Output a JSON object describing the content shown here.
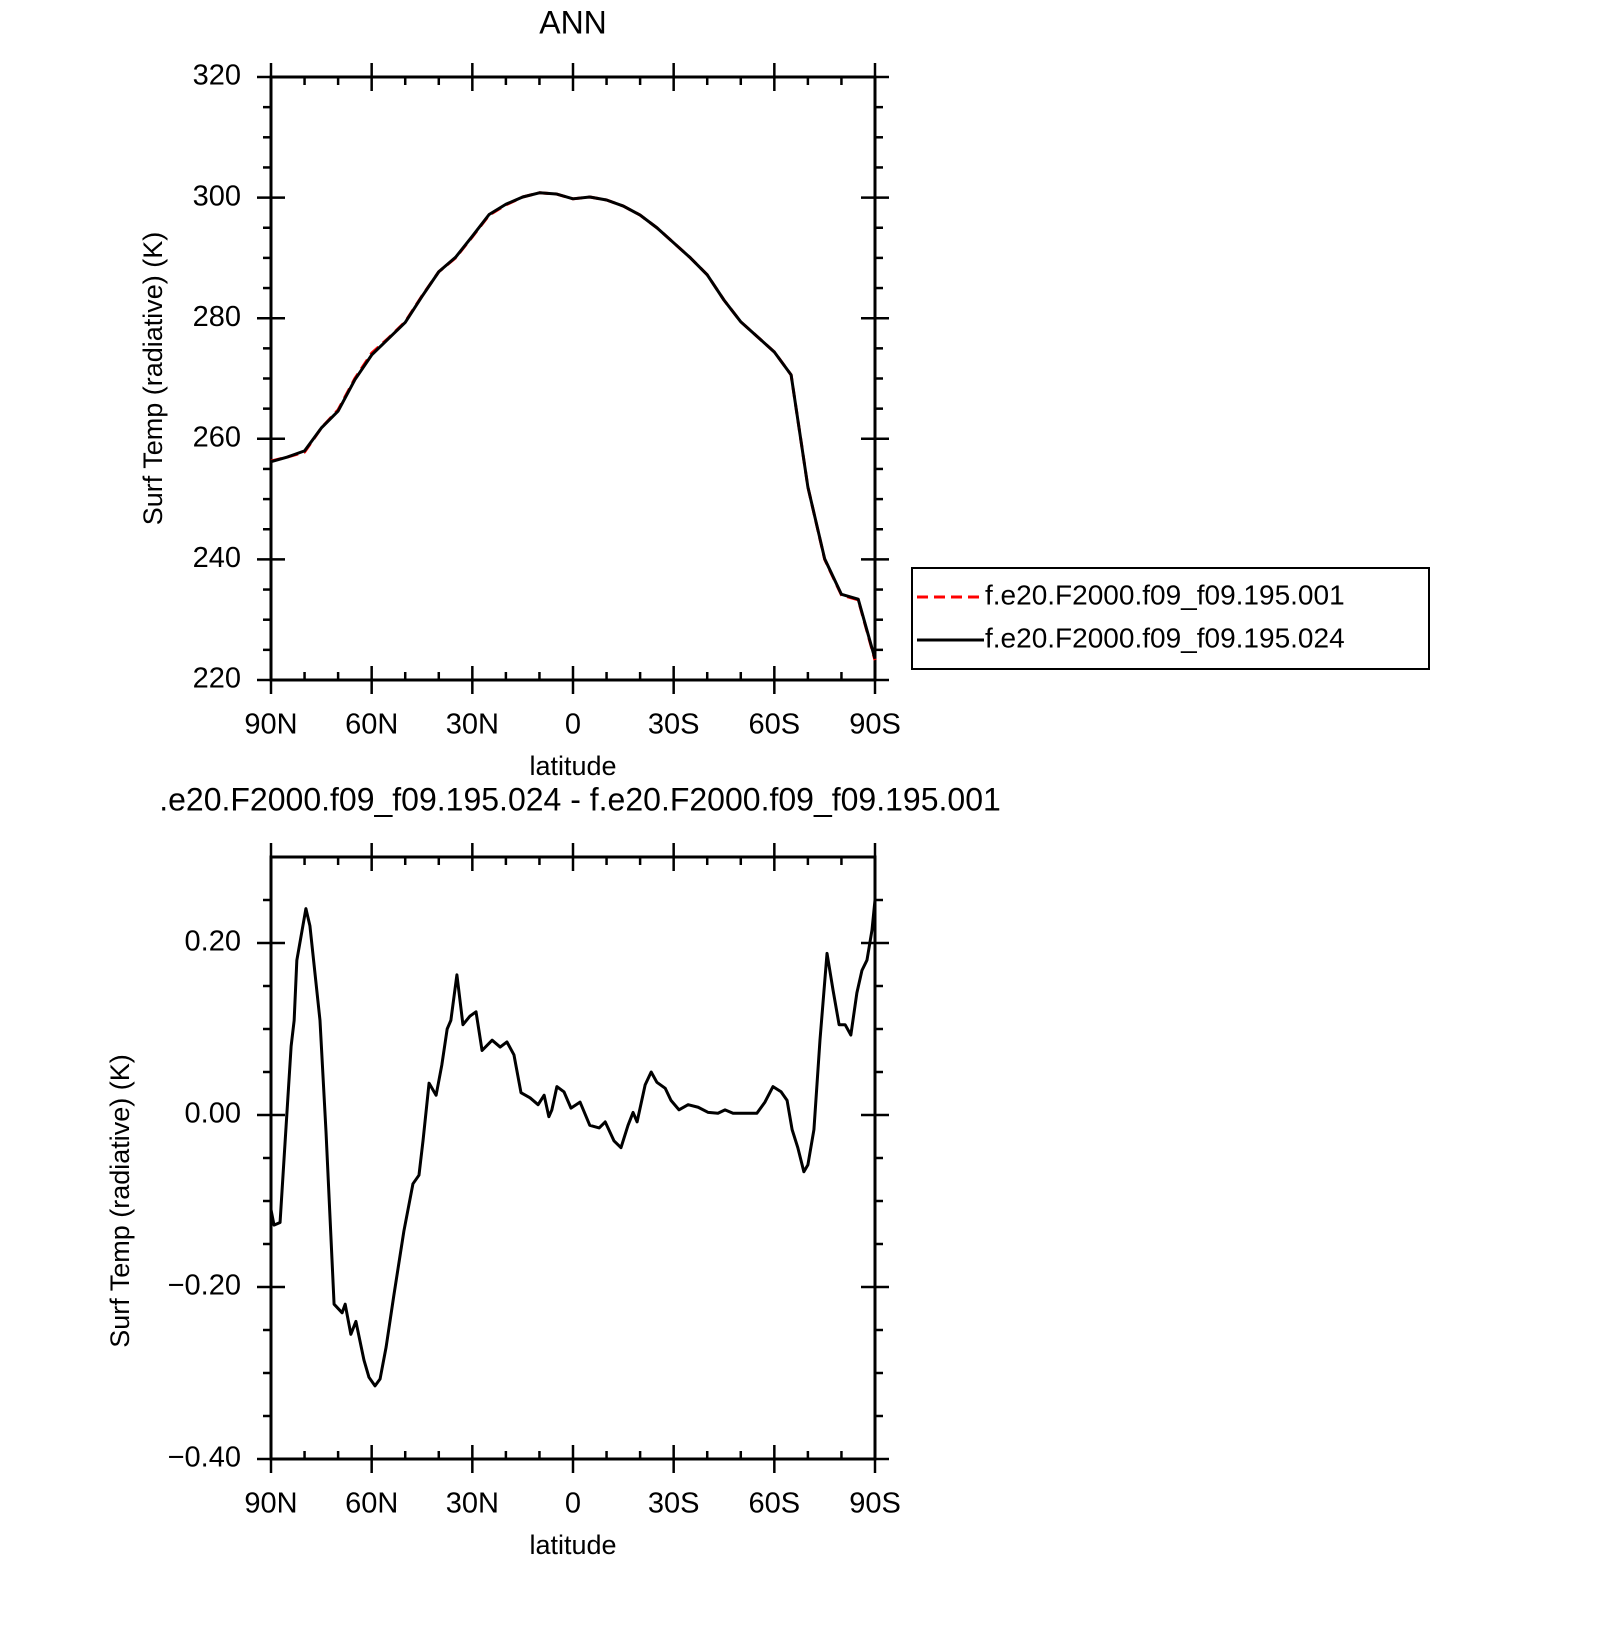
{
  "chart_data": [
    {
      "type": "line",
      "title": "ANN",
      "x_label": "latitude",
      "y_label": "Surf Temp (radiative) (K)",
      "x": [
        90,
        85,
        80,
        75,
        70,
        65,
        60,
        55,
        50,
        45,
        40,
        35,
        30,
        25,
        20,
        15,
        10,
        5,
        0,
        -5,
        -10,
        -15,
        -20,
        -25,
        -30,
        -35,
        -40,
        -45,
        -50,
        -55,
        -60,
        -65,
        -70,
        -75,
        -80,
        -85,
        -90
      ],
      "series": [
        {
          "name": "f.e20.F2000.f09_f09.195.001",
          "color": "#ff0000",
          "dashed": true,
          "values": [
            256.3,
            257.0,
            257.8,
            261.8,
            264.8,
            270.0,
            274.2,
            276.7,
            279.4,
            283.7,
            287.7,
            290.0,
            293.5,
            297.1,
            298.8,
            300.1,
            300.8,
            300.6,
            299.8,
            300.1,
            299.6,
            298.6,
            297.1,
            295.0,
            292.5,
            290.0,
            287.2,
            283.0,
            279.4,
            276.9,
            274.4,
            270.6,
            252.0,
            240.0,
            234.1,
            233.3,
            223.3
          ]
        },
        {
          "name": "f.e20.F2000.f09_f09.195.024",
          "color": "#000000",
          "dashed": false,
          "values": [
            256.2,
            257.0,
            258.0,
            261.8,
            264.6,
            269.8,
            273.9,
            276.6,
            279.3,
            283.6,
            287.7,
            290.1,
            293.6,
            297.2,
            298.9,
            300.1,
            300.8,
            300.6,
            299.8,
            300.1,
            299.6,
            298.6,
            297.1,
            295.0,
            292.5,
            290.0,
            287.2,
            283.0,
            279.4,
            276.9,
            274.4,
            270.6,
            252.0,
            240.1,
            234.2,
            233.4,
            223.5
          ]
        }
      ],
      "xlim": [
        90,
        -90
      ],
      "xticks": [
        {
          "value": 90,
          "label": "90N"
        },
        {
          "value": 60,
          "label": "60N"
        },
        {
          "value": 30,
          "label": "30N"
        },
        0,
        {
          "value": -30,
          "label": "30S"
        },
        {
          "value": -60,
          "label": "60S"
        },
        {
          "value": -90,
          "label": "90S"
        }
      ],
      "xminorticks": [
        80,
        70,
        50,
        40,
        20,
        10,
        -10,
        -20,
        -40,
        -50,
        -70,
        -80
      ],
      "ylim": [
        220,
        320
      ],
      "yticks": [
        220,
        240,
        260,
        280,
        300,
        320
      ],
      "yminorticks": [
        225,
        230,
        235,
        245,
        250,
        255,
        265,
        270,
        275,
        285,
        290,
        295,
        305,
        310,
        315
      ],
      "legend": "right"
    },
    {
      "type": "line",
      "title": ".e20.F2000.f09_f09.195.024 - f.e20.F2000.f09_f09.195.001",
      "x_label": "latitude",
      "y_label": "Surf Temp (radiative) (K)",
      "x": [
        90,
        89.1,
        87.3,
        86.1,
        84,
        83.1,
        82.3,
        79.6,
        78.4,
        75.4,
        73.6,
        71.2,
        68.8,
        67.9,
        66.2,
        64.7,
        62.3,
        60.8,
        59,
        57.5,
        55.7,
        53.4,
        50.4,
        47.7,
        45.9,
        44.7,
        42.9,
        40.8,
        39.1,
        37.5,
        36.4,
        34.6,
        32.8,
        30.7,
        28.9,
        27.1,
        24.1,
        21.7,
        19.7,
        17.6,
        15.5,
        12.8,
        10.4,
        8.6,
        7.2,
        6.3,
        4.8,
        2.7,
        0.6,
        -2.1,
        -5,
        -7.8,
        -9.6,
        -12.2,
        -14.3,
        -16.4,
        -17.9,
        -19.1,
        -21.5,
        -23.3,
        -25,
        -27.5,
        -29.2,
        -31.6,
        -34.3,
        -37.3,
        -40.3,
        -43.2,
        -45.3,
        -47.7,
        -51.3,
        -54.8,
        -57.2,
        -59.6,
        -62,
        -63.8,
        -65.3,
        -67,
        -68.8,
        -70,
        -71.8,
        -73.6,
        -75.7,
        -77.5,
        -79.3,
        -81.1,
        -82.8,
        -84.6,
        -86.1,
        -87.6,
        -89.1,
        -90
      ],
      "values": [
        -0.11,
        -0.128,
        -0.125,
        -0.05,
        0.08,
        0.11,
        0.18,
        0.24,
        0.22,
        0.11,
        -0.02,
        -0.22,
        -0.23,
        -0.22,
        -0.255,
        -0.24,
        -0.285,
        -0.305,
        -0.315,
        -0.307,
        -0.27,
        -0.21,
        -0.135,
        -0.08,
        -0.07,
        -0.03,
        0.037,
        0.023,
        0.058,
        0.1,
        0.11,
        0.163,
        0.105,
        0.115,
        0.12,
        0.075,
        0.087,
        0.079,
        0.085,
        0.07,
        0.026,
        0.02,
        0.012,
        0.023,
        -0.002,
        0.006,
        0.033,
        0.027,
        0.008,
        0.015,
        -0.012,
        -0.015,
        -0.008,
        -0.03,
        -0.038,
        -0.012,
        0.003,
        -0.008,
        0.035,
        0.05,
        0.038,
        0.031,
        0.017,
        0.006,
        0.012,
        0.009,
        0.003,
        0.002,
        0.006,
        0.002,
        0.002,
        0.002,
        0.015,
        0.033,
        0.027,
        0.017,
        -0.017,
        -0.038,
        -0.066,
        -0.058,
        -0.017,
        0.087,
        0.188,
        0.145,
        0.105,
        0.105,
        0.093,
        0.142,
        0.168,
        0.18,
        0.215,
        0.25
      ],
      "color": "#000000",
      "xlim": [
        90,
        -90
      ],
      "xticks": [
        {
          "value": 90,
          "label": "90N"
        },
        {
          "value": 60,
          "label": "60N"
        },
        {
          "value": 30,
          "label": "30N"
        },
        0,
        {
          "value": -30,
          "label": "30S"
        },
        {
          "value": -60,
          "label": "60S"
        },
        {
          "value": -90,
          "label": "90S"
        }
      ],
      "xminorticks": [
        80,
        70,
        50,
        40,
        20,
        10,
        -10,
        -20,
        -40,
        -50,
        -70,
        -80
      ],
      "ylim": [
        -0.4,
        0.3
      ],
      "yticks": [
        {
          "value": -0.4,
          "label": "−0.40"
        },
        {
          "value": -0.2,
          "label": "−0.20"
        },
        {
          "value": 0,
          "label": "0.00"
        },
        {
          "value": 0.2,
          "label": "0.20"
        }
      ],
      "yminorticks": [
        -0.35,
        -0.3,
        -0.25,
        -0.15,
        -0.1,
        -0.05,
        0.05,
        0.1,
        0.15,
        0.25
      ]
    }
  ]
}
